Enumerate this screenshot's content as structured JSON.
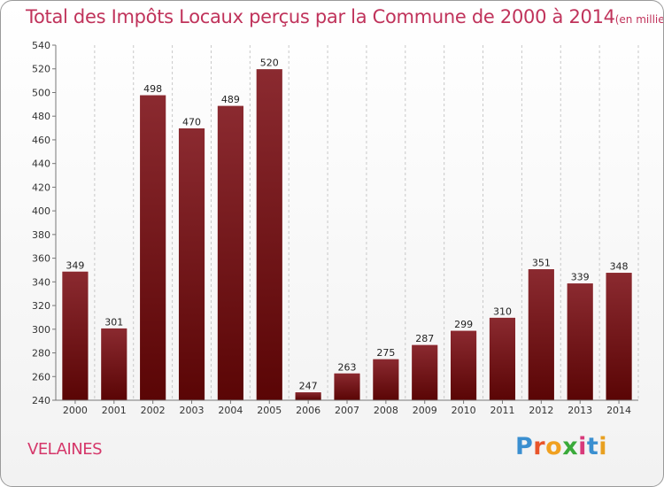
{
  "chart_data": {
    "type": "bar",
    "title": "Total des Impôts Locaux perçus par la Commune de 2000 à 2014",
    "unit_note": "(en milliers d'€)",
    "categories": [
      "2000",
      "2001",
      "2002",
      "2003",
      "2004",
      "2005",
      "2006",
      "2007",
      "2008",
      "2009",
      "2010",
      "2011",
      "2012",
      "2013",
      "2014"
    ],
    "values": [
      349,
      301,
      498,
      470,
      489,
      520,
      247,
      263,
      275,
      287,
      299,
      310,
      351,
      339,
      348
    ],
    "ylim": [
      240,
      540
    ],
    "yticks": [
      240,
      260,
      280,
      300,
      320,
      340,
      360,
      380,
      400,
      420,
      440,
      460,
      480,
      500,
      520,
      540
    ],
    "xlabel": "",
    "ylabel": "",
    "grid": "vertical dashed",
    "bar_color_top": "#8b2a30",
    "bar_color_bottom": "#5a0505"
  },
  "commune": "VELAINES",
  "brand": {
    "letters": [
      {
        "char": "P",
        "color": "#3a8fd0"
      },
      {
        "char": "r",
        "color": "#e8542a"
      },
      {
        "char": "o",
        "color": "#f0a020"
      },
      {
        "char": "x",
        "color": "#3aaa3a"
      },
      {
        "char": "i",
        "color": "#d83a7a"
      },
      {
        "char": "t",
        "color": "#3a8fd0"
      },
      {
        "char": "i",
        "color": "#e8a020"
      }
    ]
  },
  "colors": {
    "title": "#c0335b",
    "commune": "#d5376a"
  }
}
